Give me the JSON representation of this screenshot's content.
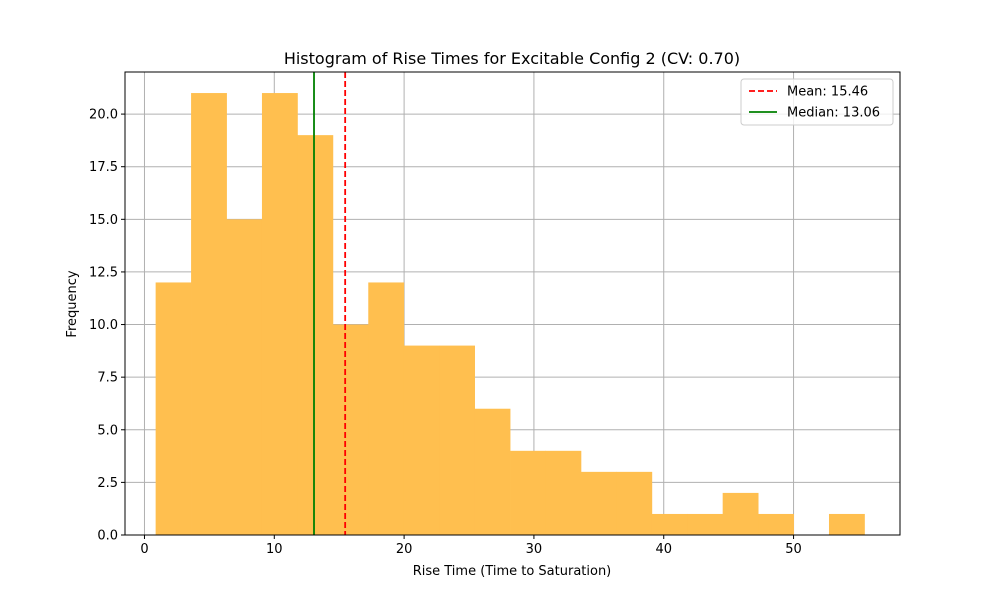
{
  "chart_data": {
    "type": "bar",
    "title": "Histogram of Rise Times for Excitable Config 2 (CV: 0.70)",
    "xlabel": "Rise Time (Time to Saturation)",
    "ylabel": "Frequency",
    "xlim": [
      -1.5,
      58.2
    ],
    "ylim": [
      0,
      22
    ],
    "xticks": [
      0,
      10,
      20,
      30,
      40,
      50
    ],
    "yticks": [
      0.0,
      2.5,
      5.0,
      7.5,
      10.0,
      12.5,
      15.0,
      17.5,
      20.0
    ],
    "grid": true,
    "bar_color": "#ffbf4f",
    "bin_edges": [
      0.86,
      3.59,
      6.32,
      9.05,
      11.78,
      14.51,
      17.24,
      19.97,
      22.7,
      25.43,
      28.16,
      30.89,
      33.62,
      36.35,
      39.08,
      41.81,
      44.54,
      47.27,
      50.0,
      52.73,
      55.46
    ],
    "values": [
      12,
      21,
      15,
      21,
      19,
      10,
      12,
      9,
      9,
      6,
      4,
      4,
      3,
      3,
      1,
      1,
      2,
      1,
      0,
      1
    ],
    "lines": [
      {
        "name": "Mean: 15.46",
        "x": 15.46,
        "color": "#ff0000",
        "style": "dashed"
      },
      {
        "name": "Median: 13.06",
        "x": 13.06,
        "color": "#008000",
        "style": "solid"
      }
    ],
    "legend_position": "top-right"
  }
}
